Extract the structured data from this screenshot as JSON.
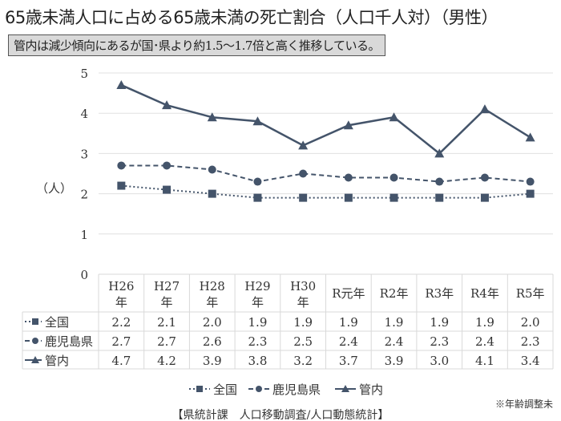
{
  "chart_data": {
    "type": "line",
    "title": "65歳未満人口に占める65歳未満の死亡割合（人口千人対）（男性）",
    "subtitle": "管内は減少傾向にあるが国･県より約1.5～1.7倍と高く推移している。",
    "ylabel": "（人）",
    "ylim": [
      0,
      5
    ],
    "yticks": [
      "0",
      "1",
      "2",
      "3",
      "4",
      "5"
    ],
    "grid": true,
    "categories": [
      [
        "H26",
        "年"
      ],
      [
        "H27",
        "年"
      ],
      [
        "H28",
        "年"
      ],
      [
        "H29",
        "年"
      ],
      [
        "H30",
        "年"
      ],
      [
        "R元年"
      ],
      [
        "R2年"
      ],
      [
        "R3年"
      ],
      [
        "R4年"
      ],
      [
        "R5年"
      ]
    ],
    "series": [
      {
        "name": "全国",
        "marker": "square",
        "dash": "dotted",
        "values": [
          2.2,
          2.1,
          2.0,
          1.9,
          1.9,
          1.9,
          1.9,
          1.9,
          1.9,
          2.0
        ],
        "labels": [
          "2.2",
          "2.1",
          "2.0",
          "1.9",
          "1.9",
          "1.9",
          "1.9",
          "1.9",
          "1.9",
          "2.0"
        ]
      },
      {
        "name": "鹿児島県",
        "marker": "circle",
        "dash": "dashed",
        "values": [
          2.7,
          2.7,
          2.6,
          2.3,
          2.5,
          2.4,
          2.4,
          2.3,
          2.4,
          2.3
        ],
        "labels": [
          "2.7",
          "2.7",
          "2.6",
          "2.3",
          "2.5",
          "2.4",
          "2.4",
          "2.3",
          "2.4",
          "2.3"
        ]
      },
      {
        "name": "管内",
        "marker": "triangle",
        "dash": "solid",
        "values": [
          4.7,
          4.2,
          3.9,
          3.8,
          3.2,
          3.7,
          3.9,
          3.0,
          4.1,
          3.4
        ],
        "labels": [
          "4.7",
          "4.2",
          "3.9",
          "3.8",
          "3.2",
          "3.7",
          "3.9",
          "3.0",
          "4.1",
          "3.4"
        ]
      }
    ],
    "legend": "bottom",
    "note": "※年齢調整未",
    "source": "【県統計課　人口移動調査/人口動態統計】",
    "color": "#44546a"
  }
}
